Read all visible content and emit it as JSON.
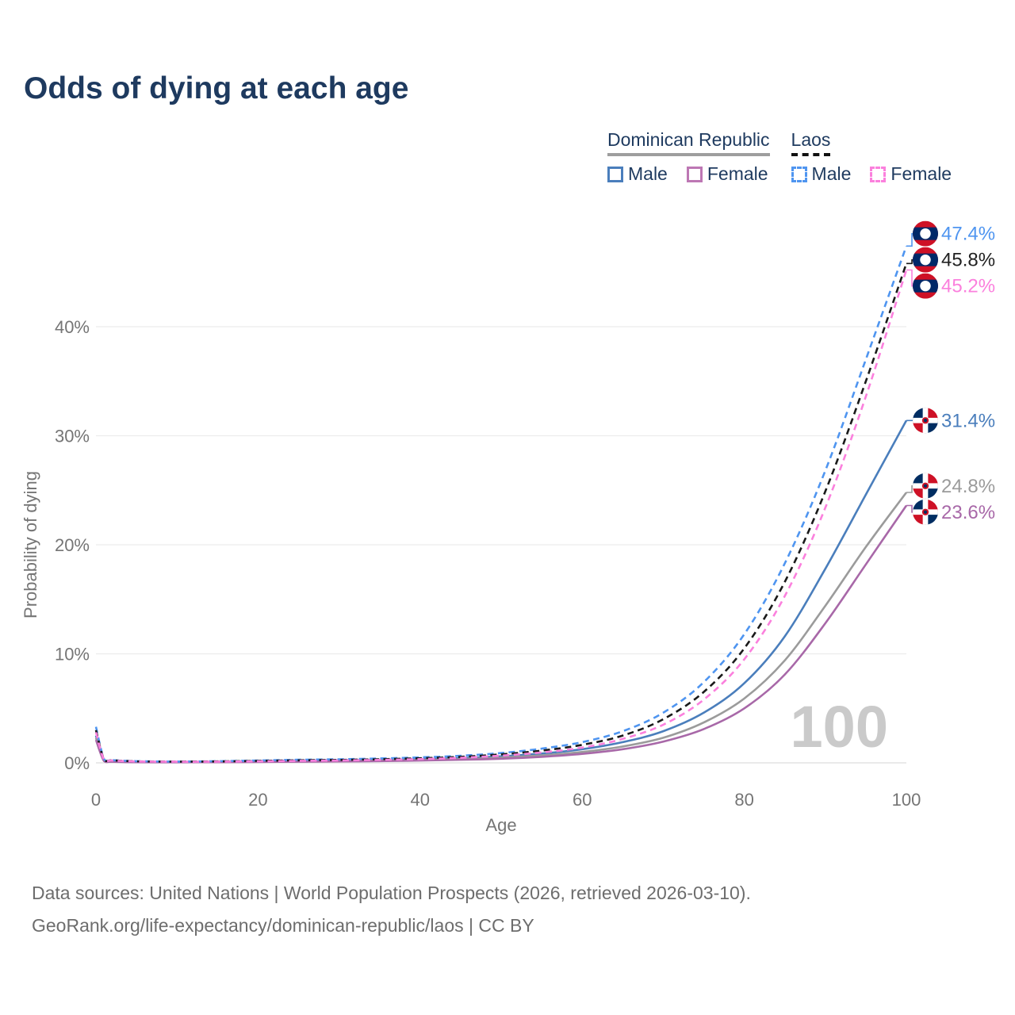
{
  "title": "Odds of dying at each age",
  "legend": {
    "groups": [
      {
        "label": "Dominican Republic",
        "line_style": "solid",
        "underline_color": "#9e9e9e",
        "items": [
          {
            "label": "Male",
            "color": "#4a7ebc",
            "dash": "solid"
          },
          {
            "label": "Female",
            "color": "#bd77b4",
            "dash": "solid"
          }
        ]
      },
      {
        "label": "Laos",
        "line_style": "dashed",
        "underline_color": "#111111",
        "items": [
          {
            "label": "Male",
            "color": "#4f95f0",
            "dash": "dashed"
          },
          {
            "label": "Female",
            "color": "#fb80dd",
            "dash": "dashed"
          }
        ]
      }
    ]
  },
  "watermark": "100",
  "axes": {
    "x_label": "Age",
    "y_label": "Probability of dying",
    "x_ticks": [
      {
        "v": 0,
        "t": "0"
      },
      {
        "v": 20,
        "t": "20"
      },
      {
        "v": 40,
        "t": "40"
      },
      {
        "v": 60,
        "t": "60"
      },
      {
        "v": 80,
        "t": "80"
      },
      {
        "v": 100,
        "t": "100"
      }
    ],
    "y_ticks": [
      {
        "v": 0,
        "t": "0%"
      },
      {
        "v": 10,
        "t": "10%"
      },
      {
        "v": 20,
        "t": "20%"
      },
      {
        "v": 30,
        "t": "30%"
      },
      {
        "v": 40,
        "t": "40%"
      }
    ]
  },
  "chart_data": {
    "type": "line",
    "title": "Odds of dying at each age",
    "xlabel": "Age",
    "ylabel": "Probability of dying",
    "xlim": [
      0,
      100
    ],
    "ylim_percent": [
      0,
      48
    ],
    "grid": "horizontal-only",
    "x": [
      0,
      1,
      2,
      5,
      10,
      15,
      20,
      25,
      30,
      35,
      40,
      45,
      50,
      55,
      60,
      65,
      70,
      75,
      80,
      85,
      90,
      95,
      100
    ],
    "series": [
      {
        "name": "Dominican Republic Male",
        "country": "Dominican Republic",
        "sex": "male",
        "color": "#4a7ebc",
        "dash": "solid",
        "flag": "dr",
        "end_label": "31.4%",
        "label_color": "#4a7ebc",
        "values": [
          2.5,
          0.2,
          0.12,
          0.08,
          0.07,
          0.1,
          0.17,
          0.21,
          0.24,
          0.28,
          0.34,
          0.44,
          0.6,
          0.85,
          1.25,
          1.9,
          2.9,
          4.6,
          7.3,
          11.6,
          17.8,
          24.6,
          31.4
        ]
      },
      {
        "name": "Dominican Republic Both",
        "country": "Dominican Republic",
        "sex": "both",
        "color": "#9b9b9b",
        "dash": "solid",
        "flag": "dr",
        "end_label": "24.8%",
        "label_color": "#9b9b9b",
        "values": [
          2.3,
          0.18,
          0.11,
          0.07,
          0.06,
          0.08,
          0.13,
          0.16,
          0.19,
          0.22,
          0.27,
          0.35,
          0.48,
          0.68,
          1.0,
          1.5,
          2.3,
          3.7,
          5.9,
          9.4,
          14.4,
          19.8,
          24.8
        ]
      },
      {
        "name": "Dominican Republic Female",
        "country": "Dominican Republic",
        "sex": "female",
        "color": "#a868a8",
        "dash": "solid",
        "flag": "dr",
        "end_label": "23.6%",
        "label_color": "#a868a8",
        "values": [
          2.1,
          0.16,
          0.1,
          0.06,
          0.05,
          0.06,
          0.08,
          0.1,
          0.13,
          0.16,
          0.21,
          0.28,
          0.38,
          0.55,
          0.82,
          1.25,
          1.95,
          3.1,
          5.0,
          8.1,
          12.8,
          18.2,
          23.6
        ]
      },
      {
        "name": "Laos Male",
        "country": "Laos",
        "sex": "male",
        "color": "#4f95f0",
        "dash": "dashed",
        "flag": "laos",
        "end_label": "47.4%",
        "label_color": "#4f95f0",
        "values": [
          3.3,
          0.35,
          0.25,
          0.15,
          0.12,
          0.15,
          0.22,
          0.28,
          0.33,
          0.4,
          0.5,
          0.65,
          0.9,
          1.3,
          1.9,
          2.9,
          4.6,
          7.4,
          11.8,
          18.3,
          26.8,
          37.0,
          47.4
        ]
      },
      {
        "name": "Laos Both",
        "country": "Laos",
        "sex": "both",
        "color": "#1a1a1a",
        "dash": "dashed",
        "flag": "laos",
        "end_label": "45.8%",
        "label_color": "#222222",
        "values": [
          3.0,
          0.32,
          0.23,
          0.14,
          0.11,
          0.13,
          0.18,
          0.23,
          0.27,
          0.33,
          0.42,
          0.55,
          0.78,
          1.12,
          1.65,
          2.5,
          4.0,
          6.5,
          10.5,
          16.6,
          24.9,
          35.0,
          45.8
        ]
      },
      {
        "name": "Laos Female",
        "country": "Laos",
        "sex": "female",
        "color": "#fb80dd",
        "dash": "dashed",
        "flag": "laos",
        "end_label": "45.2%",
        "label_color": "#fb80dd",
        "values": [
          2.8,
          0.3,
          0.21,
          0.13,
          0.1,
          0.11,
          0.14,
          0.18,
          0.22,
          0.27,
          0.34,
          0.46,
          0.66,
          0.95,
          1.4,
          2.2,
          3.5,
          5.8,
          9.5,
          15.3,
          23.4,
          33.6,
          45.2
        ]
      }
    ]
  },
  "footer": {
    "line1": "Data sources: United Nations | World Population Prospects (2026, retrieved 2026-03-10).",
    "line2": "GeoRank.org/life-expectancy/dominican-republic/laos | CC BY"
  },
  "colors": {
    "title": "#1e3a5f",
    "tick_text": "#757575",
    "grid": "#ececec",
    "grid_zero": "#dedede",
    "watermark": "#cacaca",
    "footer_text": "#6d6d6d"
  }
}
